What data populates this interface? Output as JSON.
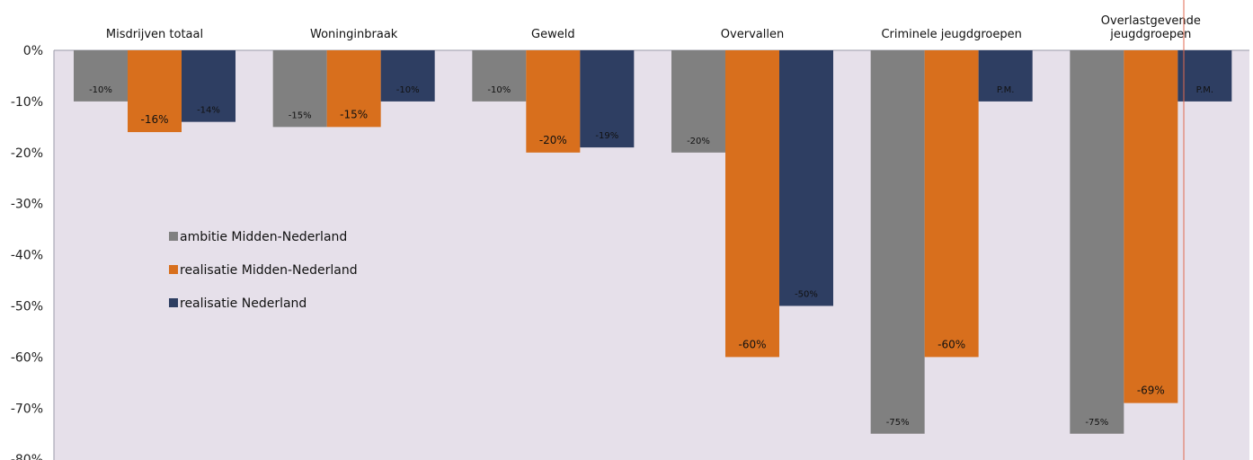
{
  "chart_data": {
    "type": "bar",
    "categories": [
      "Misdrijven totaal",
      "Woninginbraak",
      "Geweld",
      "Overvallen",
      "Criminele jeugdgroepen",
      "Overlastgevende jeugdgroepen"
    ],
    "series": [
      {
        "name": "ambitie Midden-Nederland",
        "color": "#808080",
        "values": [
          -10,
          -15,
          -10,
          -20,
          -75,
          -75
        ],
        "labels": [
          "-10%",
          "-15%",
          "-10%",
          "-20%",
          "-75%",
          "-75%"
        ]
      },
      {
        "name": "realisatie Midden-Nederland",
        "color": "#d86f1d",
        "values": [
          -16,
          -15,
          -20,
          -60,
          -60,
          -69
        ],
        "labels": [
          "-16%",
          "-15%",
          "-20%",
          "-60%",
          "-60%",
          "-69%"
        ]
      },
      {
        "name": "realisatie Nederland",
        "color": "#2e3e62",
        "values": [
          -14,
          -10,
          -19,
          -50,
          -10,
          -10
        ],
        "labels": [
          "-14%",
          "-10%",
          "-19%",
          "-50%",
          "P.M.",
          "P.M."
        ]
      }
    ],
    "y_ticks": [
      "0%",
      "-10%",
      "-20%",
      "-30%",
      "-40%",
      "-50%",
      "-60%",
      "-70%",
      "-80%"
    ],
    "ylim": [
      -80,
      0
    ],
    "title": "",
    "xlabel": "",
    "ylabel": "",
    "legend_position": "middle-left",
    "grid": false,
    "background": "#e6e0ea"
  }
}
